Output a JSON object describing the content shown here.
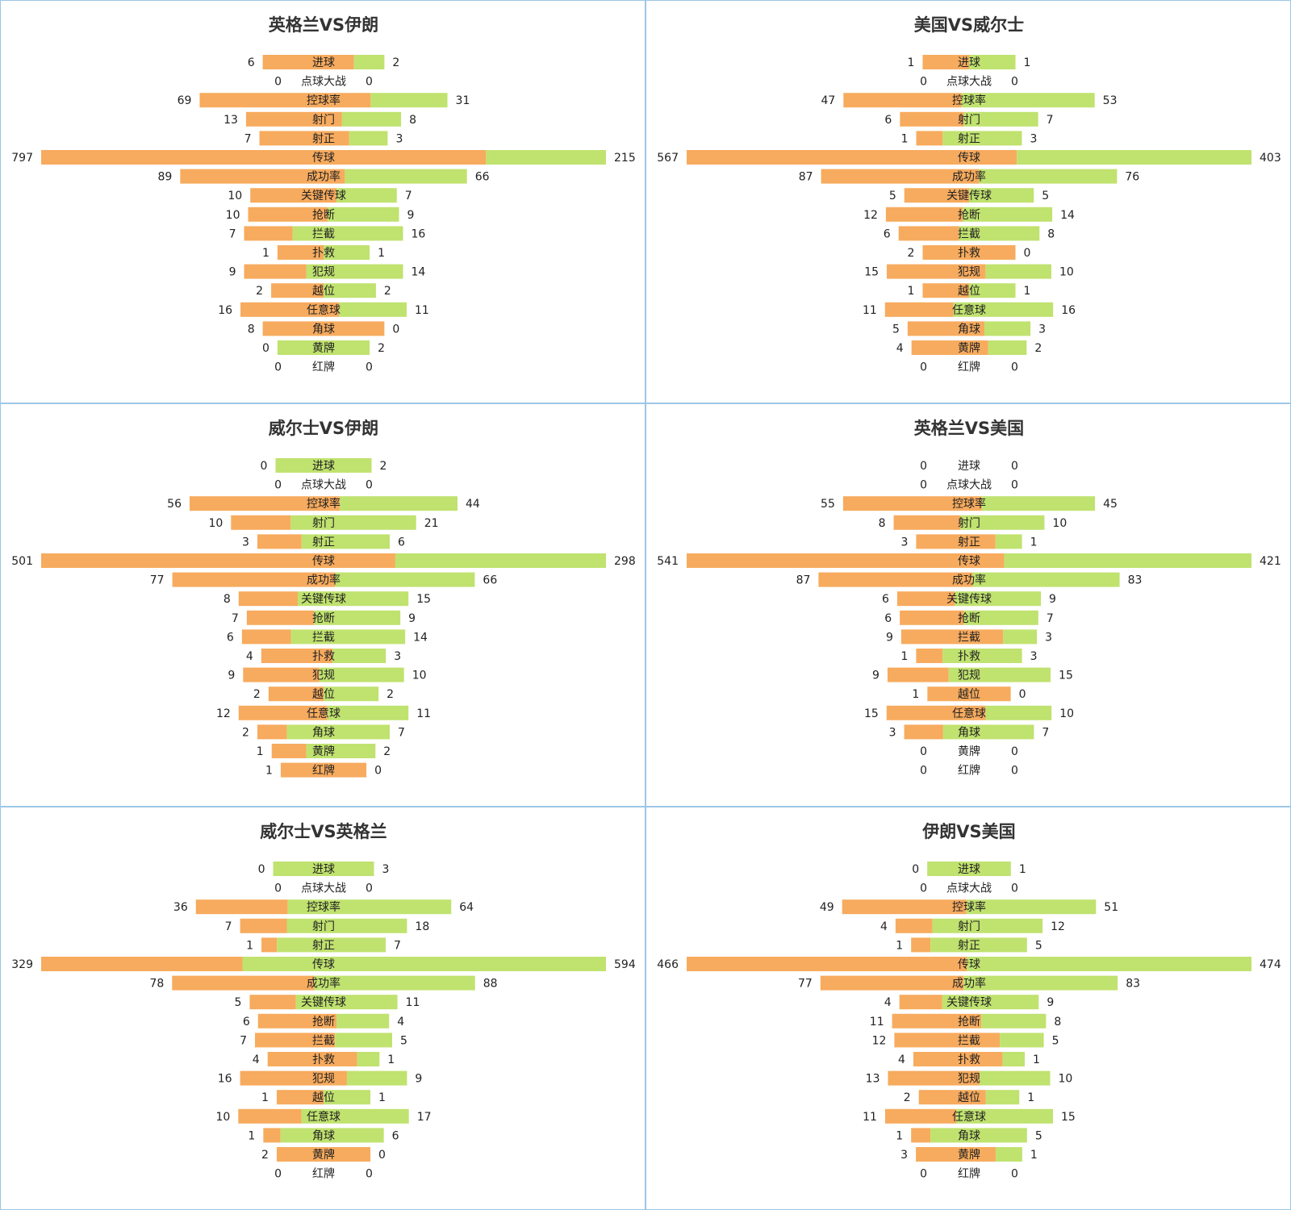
{
  "chart_data": [
    {
      "type": "bar",
      "title": "英格兰VS伊朗",
      "categories": [
        "进球",
        "点球大战",
        "控球率",
        "射门",
        "射正",
        "传球",
        "成功率",
        "关键传球",
        "抢断",
        "拦截",
        "扑救",
        "犯规",
        "越位",
        "任意球",
        "角球",
        "黄牌",
        "红牌"
      ],
      "series": [
        {
          "values": [
            6,
            0,
            69,
            13,
            7,
            797,
            89,
            10,
            10,
            7,
            1,
            9,
            2,
            16,
            8,
            0,
            0
          ]
        },
        {
          "values": [
            2,
            0,
            31,
            8,
            3,
            215,
            66,
            7,
            9,
            16,
            1,
            14,
            2,
            11,
            0,
            2,
            0
          ]
        }
      ],
      "colors": [
        "#f7ab5e",
        "#c0e26f"
      ]
    },
    {
      "type": "bar",
      "title": "美国VS威尔士",
      "categories": [
        "进球",
        "点球大战",
        "控球率",
        "射门",
        "射正",
        "传球",
        "成功率",
        "关键传球",
        "抢断",
        "拦截",
        "扑救",
        "犯规",
        "越位",
        "任意球",
        "角球",
        "黄牌",
        "红牌"
      ],
      "series": [
        {
          "values": [
            1,
            0,
            47,
            6,
            1,
            567,
            87,
            5,
            12,
            6,
            2,
            15,
            1,
            11,
            5,
            4,
            0
          ]
        },
        {
          "values": [
            1,
            0,
            53,
            7,
            3,
            403,
            76,
            5,
            14,
            8,
            0,
            10,
            1,
            16,
            3,
            2,
            0
          ]
        }
      ],
      "colors": [
        "#f7ab5e",
        "#c0e26f"
      ]
    },
    {
      "type": "bar",
      "title": "威尔士VS伊朗",
      "categories": [
        "进球",
        "点球大战",
        "控球率",
        "射门",
        "射正",
        "传球",
        "成功率",
        "关键传球",
        "抢断",
        "拦截",
        "扑救",
        "犯规",
        "越位",
        "任意球",
        "角球",
        "黄牌",
        "红牌"
      ],
      "series": [
        {
          "values": [
            0,
            0,
            56,
            10,
            3,
            501,
            77,
            8,
            7,
            6,
            4,
            9,
            2,
            12,
            2,
            1,
            1
          ]
        },
        {
          "values": [
            2,
            0,
            44,
            21,
            6,
            298,
            66,
            15,
            9,
            14,
            3,
            10,
            2,
            11,
            7,
            2,
            0
          ]
        }
      ],
      "colors": [
        "#f7ab5e",
        "#c0e26f"
      ]
    },
    {
      "type": "bar",
      "title": "英格兰VS美国",
      "categories": [
        "进球",
        "点球大战",
        "控球率",
        "射门",
        "射正",
        "传球",
        "成功率",
        "关键传球",
        "抢断",
        "拦截",
        "扑救",
        "犯规",
        "越位",
        "任意球",
        "角球",
        "黄牌",
        "红牌"
      ],
      "series": [
        {
          "values": [
            0,
            0,
            55,
            8,
            3,
            541,
            87,
            6,
            6,
            9,
            1,
            9,
            1,
            15,
            3,
            0,
            0
          ]
        },
        {
          "values": [
            0,
            0,
            45,
            10,
            1,
            421,
            83,
            9,
            7,
            3,
            3,
            15,
            0,
            10,
            7,
            0,
            0
          ]
        }
      ],
      "colors": [
        "#f7ab5e",
        "#c0e26f"
      ]
    },
    {
      "type": "bar",
      "title": "威尔士VS英格兰",
      "categories": [
        "进球",
        "点球大战",
        "控球率",
        "射门",
        "射正",
        "传球",
        "成功率",
        "关键传球",
        "抢断",
        "拦截",
        "扑救",
        "犯规",
        "越位",
        "任意球",
        "角球",
        "黄牌",
        "红牌"
      ],
      "series": [
        {
          "values": [
            0,
            0,
            36,
            7,
            1,
            329,
            78,
            5,
            6,
            7,
            4,
            16,
            1,
            10,
            1,
            2,
            0
          ]
        },
        {
          "values": [
            3,
            0,
            64,
            18,
            7,
            594,
            88,
            11,
            4,
            5,
            1,
            9,
            1,
            17,
            6,
            0,
            0
          ]
        }
      ],
      "colors": [
        "#f7ab5e",
        "#c0e26f"
      ]
    },
    {
      "type": "bar",
      "title": "伊朗VS美国",
      "categories": [
        "进球",
        "点球大战",
        "控球率",
        "射门",
        "射正",
        "传球",
        "成功率",
        "关键传球",
        "抢断",
        "拦截",
        "扑救",
        "犯规",
        "越位",
        "任意球",
        "角球",
        "黄牌",
        "红牌"
      ],
      "series": [
        {
          "values": [
            0,
            0,
            49,
            4,
            1,
            466,
            77,
            4,
            11,
            12,
            4,
            13,
            2,
            11,
            1,
            3,
            0
          ]
        },
        {
          "values": [
            1,
            0,
            51,
            12,
            5,
            474,
            83,
            9,
            8,
            5,
            1,
            10,
            1,
            15,
            5,
            1,
            0
          ]
        }
      ],
      "colors": [
        "#f7ab5e",
        "#c0e26f"
      ]
    }
  ]
}
